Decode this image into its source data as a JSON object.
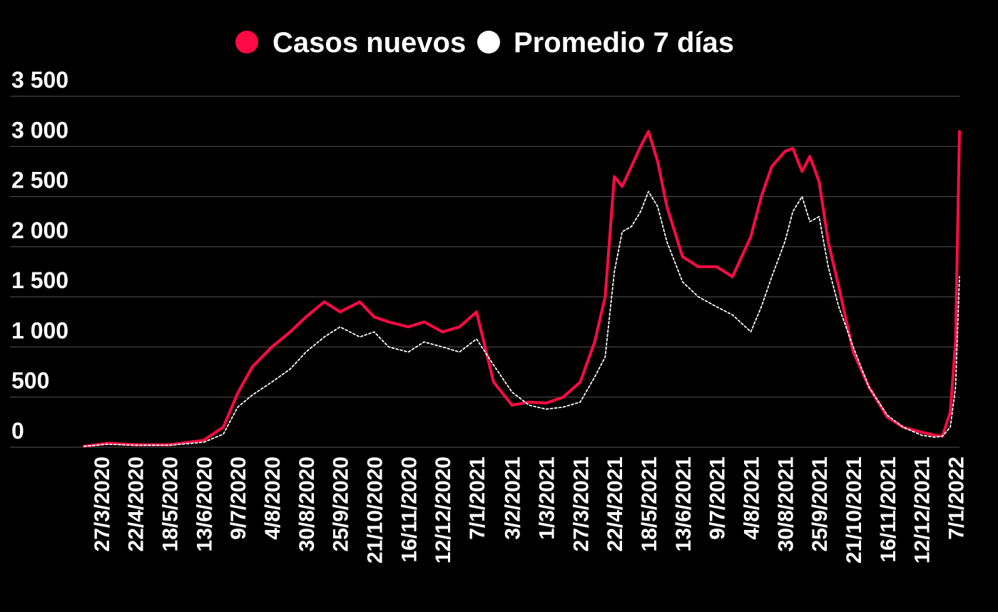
{
  "chart_data": {
    "type": "line",
    "title": "",
    "xlabel": "",
    "ylabel": "",
    "ylim": [
      0,
      3500
    ],
    "y_ticks": [
      0,
      500,
      1000,
      1500,
      2000,
      2500,
      3000,
      3500
    ],
    "y_tick_labels": [
      "0",
      "500",
      "1 000",
      "1 500",
      "2 000",
      "2 500",
      "3 000",
      "3 500"
    ],
    "x_range": [
      "2020-03-14",
      "2022-01-10"
    ],
    "x_ticks": [
      "2020-03-27",
      "2020-04-22",
      "2020-05-18",
      "2020-06-13",
      "2020-07-09",
      "2020-08-04",
      "2020-08-30",
      "2020-09-25",
      "2020-10-21",
      "2020-11-16",
      "2020-12-12",
      "2021-01-07",
      "2021-02-03",
      "2021-03-01",
      "2021-03-27",
      "2021-04-22",
      "2021-05-18",
      "2021-06-13",
      "2021-07-09",
      "2021-08-04",
      "2021-08-30",
      "2021-09-25",
      "2021-10-21",
      "2021-11-16",
      "2021-12-12",
      "2022-01-07"
    ],
    "x_tick_labels": [
      "27/3/2020",
      "22/4/2020",
      "18/5/2020",
      "13/6/2020",
      "9/7/2020",
      "4/8/2020",
      "30/8/2020",
      "25/9/2020",
      "21/10/2020",
      "16/11/2020",
      "12/12/2020",
      "7/1/2021",
      "3/2/2021",
      "1/3/2021",
      "27/3/2021",
      "22/4/2021",
      "18/5/2021",
      "13/6/2021",
      "9/7/2021",
      "4/8/2021",
      "30/8/2021",
      "25/9/2021",
      "21/10/2021",
      "16/11/2021",
      "12/12/2021",
      "7/1/2022"
    ],
    "grid": true,
    "legend_position": "top-center",
    "series": [
      {
        "name": "Casos nuevos",
        "color": "#ff0a44",
        "style": "solid",
        "x": [
          "2020-03-14",
          "2020-04-01",
          "2020-04-22",
          "2020-05-18",
          "2020-06-13",
          "2020-06-28",
          "2020-07-09",
          "2020-07-20",
          "2020-08-04",
          "2020-08-18",
          "2020-08-30",
          "2020-09-13",
          "2020-09-25",
          "2020-10-10",
          "2020-10-21",
          "2020-11-01",
          "2020-11-16",
          "2020-11-28",
          "2020-12-12",
          "2020-12-25",
          "2021-01-07",
          "2021-01-20",
          "2021-02-03",
          "2021-02-16",
          "2021-03-01",
          "2021-03-14",
          "2021-03-27",
          "2021-04-07",
          "2021-04-15",
          "2021-04-22",
          "2021-04-28",
          "2021-05-05",
          "2021-05-12",
          "2021-05-18",
          "2021-05-25",
          "2021-06-01",
          "2021-06-13",
          "2021-06-25",
          "2021-07-09",
          "2021-07-21",
          "2021-08-04",
          "2021-08-12",
          "2021-08-20",
          "2021-08-30",
          "2021-09-05",
          "2021-09-12",
          "2021-09-18",
          "2021-09-25",
          "2021-10-02",
          "2021-10-10",
          "2021-10-21",
          "2021-11-02",
          "2021-11-16",
          "2021-11-28",
          "2021-12-12",
          "2021-12-22",
          "2021-12-28",
          "2022-01-03",
          "2022-01-07",
          "2022-01-10"
        ],
        "values": [
          10,
          40,
          25,
          25,
          70,
          200,
          540,
          800,
          1000,
          1150,
          1300,
          1450,
          1350,
          1450,
          1300,
          1250,
          1200,
          1250,
          1150,
          1200,
          1350,
          650,
          420,
          450,
          440,
          500,
          650,
          1050,
          1500,
          2700,
          2600,
          2800,
          3000,
          3150,
          2850,
          2400,
          1900,
          1800,
          1800,
          1700,
          2100,
          2500,
          2800,
          2950,
          2980,
          2750,
          2900,
          2650,
          2050,
          1600,
          950,
          600,
          300,
          200,
          150,
          120,
          110,
          350,
          1050,
          3150
        ]
      },
      {
        "name": "Promedio 7 días",
        "color": "#ffffff",
        "style": "dotted",
        "x": [
          "2020-03-14",
          "2020-04-01",
          "2020-04-22",
          "2020-05-18",
          "2020-06-13",
          "2020-06-28",
          "2020-07-09",
          "2020-07-20",
          "2020-08-04",
          "2020-08-18",
          "2020-08-30",
          "2020-09-13",
          "2020-09-25",
          "2020-10-10",
          "2020-10-21",
          "2020-11-01",
          "2020-11-16",
          "2020-11-28",
          "2020-12-12",
          "2020-12-25",
          "2021-01-07",
          "2021-01-20",
          "2021-02-03",
          "2021-02-16",
          "2021-03-01",
          "2021-03-14",
          "2021-03-27",
          "2021-04-07",
          "2021-04-15",
          "2021-04-22",
          "2021-04-28",
          "2021-05-05",
          "2021-05-12",
          "2021-05-18",
          "2021-05-25",
          "2021-06-01",
          "2021-06-13",
          "2021-06-25",
          "2021-07-09",
          "2021-07-21",
          "2021-08-04",
          "2021-08-12",
          "2021-08-20",
          "2021-08-30",
          "2021-09-05",
          "2021-09-12",
          "2021-09-18",
          "2021-09-25",
          "2021-10-02",
          "2021-10-10",
          "2021-10-21",
          "2021-11-02",
          "2021-11-16",
          "2021-11-28",
          "2021-12-12",
          "2021-12-22",
          "2021-12-28",
          "2022-01-03",
          "2022-01-07",
          "2022-01-10"
        ],
        "values": [
          10,
          30,
          20,
          20,
          50,
          130,
          400,
          520,
          650,
          780,
          950,
          1100,
          1200,
          1100,
          1150,
          1000,
          950,
          1050,
          1000,
          950,
          1080,
          820,
          550,
          420,
          380,
          400,
          450,
          700,
          900,
          1750,
          2150,
          2200,
          2350,
          2550,
          2400,
          2050,
          1650,
          1500,
          1400,
          1320,
          1150,
          1400,
          1700,
          2050,
          2350,
          2500,
          2250,
          2300,
          1800,
          1400,
          1000,
          600,
          320,
          200,
          120,
          100,
          110,
          200,
          600,
          1700
        ]
      }
    ]
  }
}
